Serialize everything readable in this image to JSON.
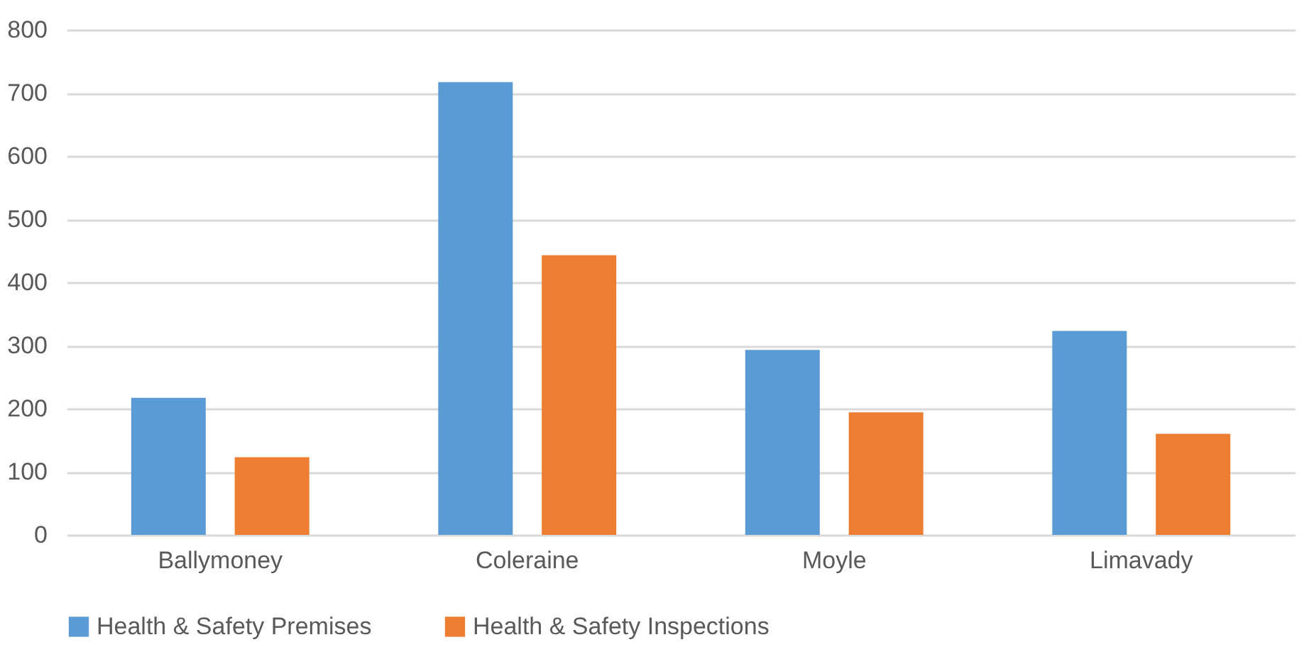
{
  "chart_data": {
    "type": "bar",
    "categories": [
      "Ballymoney",
      "Coleraine",
      "Moyle",
      "Limavady"
    ],
    "series": [
      {
        "name": "Health & Safety Premises",
        "color": "#5b9bd5",
        "values": [
          217,
          717,
          293,
          323
        ]
      },
      {
        "name": "Health & Safety  Inspections",
        "color": "#ed7d31",
        "values": [
          123,
          443,
          194,
          160
        ]
      }
    ],
    "ylim": [
      0,
      800
    ],
    "yticks": [
      0,
      100,
      200,
      300,
      400,
      500,
      600,
      700,
      800
    ],
    "grid": "y",
    "legend": "bottom"
  }
}
